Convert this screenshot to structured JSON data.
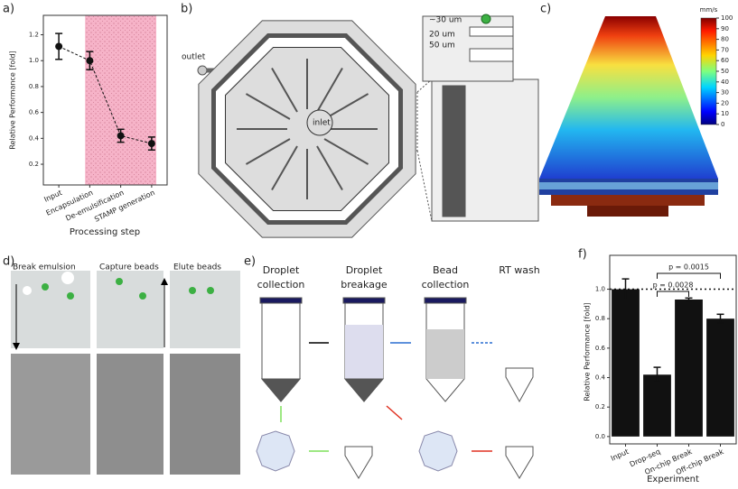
{
  "panels": {
    "a": "a)",
    "b": "b)",
    "c": "c)",
    "d": "d)",
    "e": "e)",
    "f": "f)"
  },
  "chart_data": [
    {
      "type": "errorline",
      "categories": [
        "Input",
        "Encapsulation",
        "De-emulsification",
        "STAMP generation"
      ],
      "values": [
        1.11,
        1.0,
        0.42,
        0.36
      ],
      "errors": [
        0.1,
        0.07,
        0.05,
        0.05
      ],
      "color": "#111111",
      "shade_color": "#f6b3c8",
      "ylim": [
        0.04,
        1.35
      ],
      "yticks": [
        0.2,
        0.4,
        0.6,
        0.8,
        {
          "value": 1.0,
          "label": "1.0"
        },
        1.2
      ],
      "xlabel": "Processing step",
      "ylabel": "Relative Performance [fold]"
    },
    {
      "type": "bar",
      "categories": [
        "Input",
        "Drop-seq",
        "On-chip Break",
        "Off-chip Break"
      ],
      "values": [
        1.0,
        0.42,
        0.93,
        0.8
      ],
      "errors": [
        0.07,
        0.05,
        0.01,
        0.03
      ],
      "color": "#111111",
      "ylim": [
        -0.05,
        1.23
      ],
      "yticks": [
        {
          "value": 0.0,
          "label": "0.0"
        },
        0.2,
        0.4,
        0.6,
        0.8,
        {
          "value": 1.0,
          "label": "1.0"
        }
      ],
      "reference_line": 1.0,
      "annotations": [
        "p = 0.0028",
        "p = 0.0015"
      ],
      "xlabel": "Experiment",
      "ylabel": "Relative Performance [fold]"
    },
    {
      "type": "colorbar",
      "unit": "mm/s",
      "ylim": [
        0,
        100
      ],
      "yticks": [
        0,
        10,
        20,
        30,
        40,
        50,
        60,
        70,
        80,
        90,
        100
      ]
    }
  ],
  "panel_b": {
    "outlet": "outlet",
    "inlet": "inlet",
    "bead_size": "~30 um",
    "gap": "20 um",
    "width": "50 um"
  },
  "panel_d": {
    "steps": [
      "Break emulsion",
      "Capture beads",
      "Elute beads"
    ]
  },
  "panel_e": {
    "steps": [
      [
        "Droplet",
        "collection"
      ],
      [
        "Droplet",
        "breakage"
      ],
      [
        "Bead",
        "collection"
      ],
      [
        "RT wash"
      ]
    ]
  }
}
